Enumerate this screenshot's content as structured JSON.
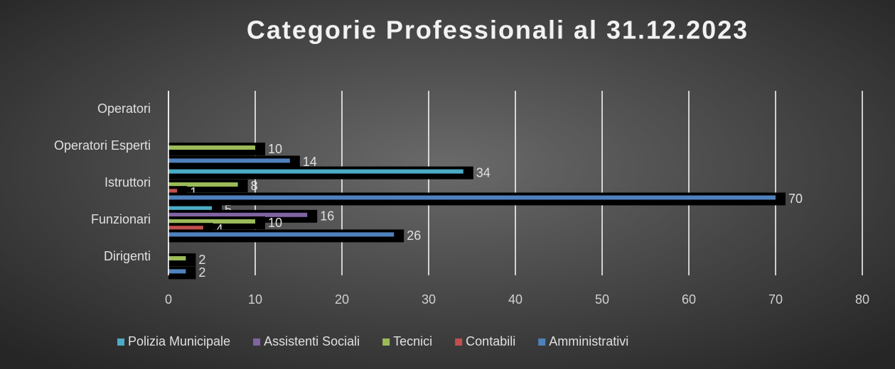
{
  "chart_data": {
    "type": "hbar",
    "title": "Categorie Professionali al 31.12.2023",
    "categories": [
      "Dirigenti",
      "Funzionari",
      "Istruttori",
      "Operatori Esperti",
      "Operatori"
    ],
    "series": [
      {
        "name": "Polizia Municipale",
        "color": "#4bacc6",
        "values": [
          null,
          5,
          34,
          null,
          null
        ]
      },
      {
        "name": "Assistenti Sociali",
        "color": "#8064a2",
        "values": [
          null,
          16,
          null,
          null,
          null
        ]
      },
      {
        "name": "Tecnici",
        "color": "#9bbb59",
        "values": [
          2,
          10,
          8,
          10,
          null
        ]
      },
      {
        "name": "Contabili",
        "color": "#c0504d",
        "values": [
          null,
          4,
          1,
          null,
          null
        ]
      },
      {
        "name": "Amministrativi",
        "color": "#4f81bd",
        "values": [
          2,
          26,
          70,
          14,
          null
        ]
      }
    ],
    "xlim": [
      0,
      80
    ],
    "xticks": [
      0,
      10,
      20,
      30,
      40,
      50,
      60,
      70,
      80
    ],
    "grid": true,
    "legend": "bottom"
  }
}
